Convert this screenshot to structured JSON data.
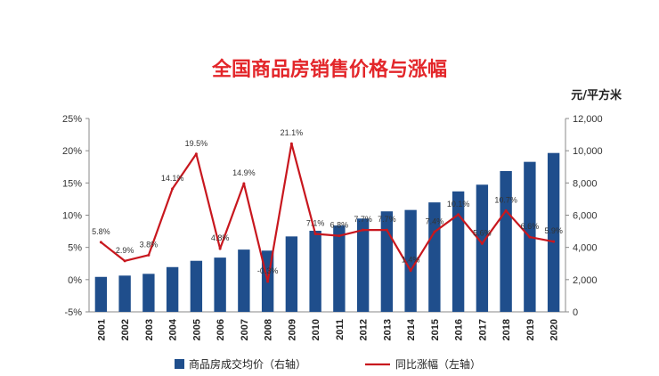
{
  "title": "全国商品房销售价格与涨幅",
  "unit_label": "元/平方米",
  "colors": {
    "title": "#e3262a",
    "bar": "#1f4e8c",
    "line": "#c8171e"
  },
  "chart_data": {
    "type": "bar",
    "title": "全国商品房销售价格与涨幅",
    "categories": [
      "2001",
      "2002",
      "2003",
      "2004",
      "2005",
      "2006",
      "2007",
      "2008",
      "2009",
      "2010",
      "2011",
      "2012",
      "2013",
      "2014",
      "2015",
      "2016",
      "2017",
      "2018",
      "2019",
      "2020"
    ],
    "left_axis": {
      "ticks": [
        "-5%",
        "0%",
        "5%",
        "10%",
        "15%",
        "20%",
        "25%"
      ],
      "ylim": [
        -5,
        25
      ]
    },
    "right_axis": {
      "ticks": [
        "0",
        "2,000",
        "4,000",
        "6,000",
        "8,000",
        "10,000",
        "12,000"
      ],
      "ylim": [
        0,
        12000
      ],
      "unit": "元/平方米"
    },
    "series": [
      {
        "name": "商品房成交均价（右轴）",
        "type": "bar",
        "axis": "right",
        "values": [
          2170,
          2250,
          2359,
          2778,
          3168,
          3367,
          3864,
          3800,
          4681,
          5032,
          5357,
          5791,
          6237,
          6324,
          6793,
          7476,
          7892,
          8737,
          9310,
          9860
        ]
      },
      {
        "name": "同比涨幅（左轴）",
        "type": "line",
        "axis": "left",
        "values": [
          5.8,
          2.9,
          3.8,
          14.1,
          19.5,
          4.8,
          14.9,
          -0.3,
          21.1,
          7.1,
          6.8,
          7.7,
          7.7,
          1.4,
          7.4,
          10.1,
          5.6,
          10.7,
          6.6,
          5.9
        ],
        "labels": [
          "5.8%",
          "2.9%",
          "3.8%",
          "14.1%",
          "19.5%",
          "4.8%",
          "14.9%",
          "-0.3%",
          "21.1%",
          "7.1%",
          "6.8%",
          "7.7%",
          "7.7%",
          "1.4%",
          "7.4%",
          "10.1%",
          "5.6%",
          "10.7%",
          "6.6%",
          "5.9%"
        ]
      }
    ],
    "legend": {
      "position": "bottom",
      "entries": [
        "商品房成交均价（右轴）",
        "同比涨幅（左轴）"
      ]
    },
    "grid": false
  }
}
